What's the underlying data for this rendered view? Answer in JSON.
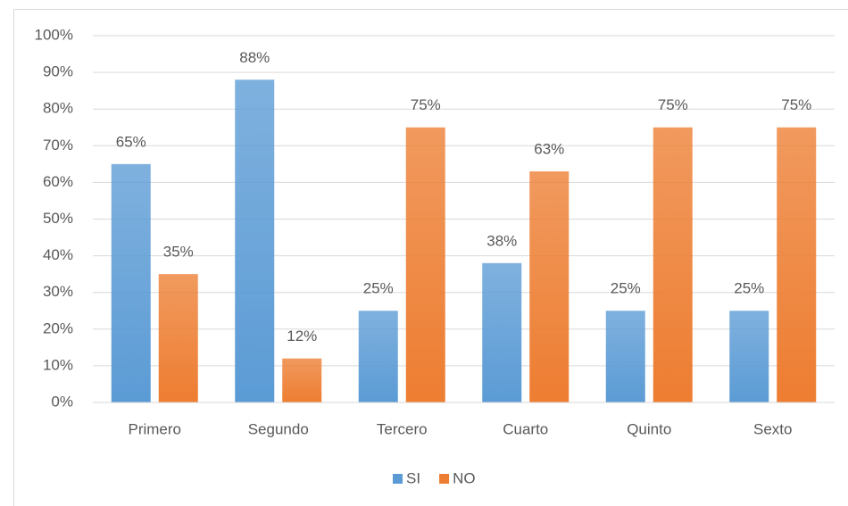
{
  "chart_data": {
    "type": "bar",
    "categories": [
      "Primero",
      "Segundo",
      "Tercero",
      "Cuarto",
      "Quinto",
      "Sexto"
    ],
    "series": [
      {
        "name": "SI",
        "color": "#5b9bd5",
        "values": [
          65,
          88,
          25,
          38,
          25,
          25
        ],
        "value_labels": [
          "65%",
          "88%",
          "25%",
          "38%",
          "25%",
          "25%"
        ]
      },
      {
        "name": "NO",
        "color": "#ed7d31",
        "values": [
          35,
          12,
          75,
          63,
          75,
          75
        ],
        "value_labels": [
          "35%",
          "12%",
          "75%",
          "63%",
          "75%",
          "75%"
        ]
      }
    ],
    "ylim": [
      0,
      100
    ],
    "yticks": [
      {
        "value": 0,
        "label": "0%"
      },
      {
        "value": 10,
        "label": "10%"
      },
      {
        "value": 20,
        "label": "20%"
      },
      {
        "value": 30,
        "label": "30%"
      },
      {
        "value": 40,
        "label": "40%"
      },
      {
        "value": 50,
        "label": "50%"
      },
      {
        "value": 60,
        "label": "60%"
      },
      {
        "value": 70,
        "label": "70%"
      },
      {
        "value": 80,
        "label": "80%"
      },
      {
        "value": 90,
        "label": "90%"
      },
      {
        "value": 100,
        "label": "100%"
      }
    ],
    "grid": true,
    "legend": "bottom"
  }
}
